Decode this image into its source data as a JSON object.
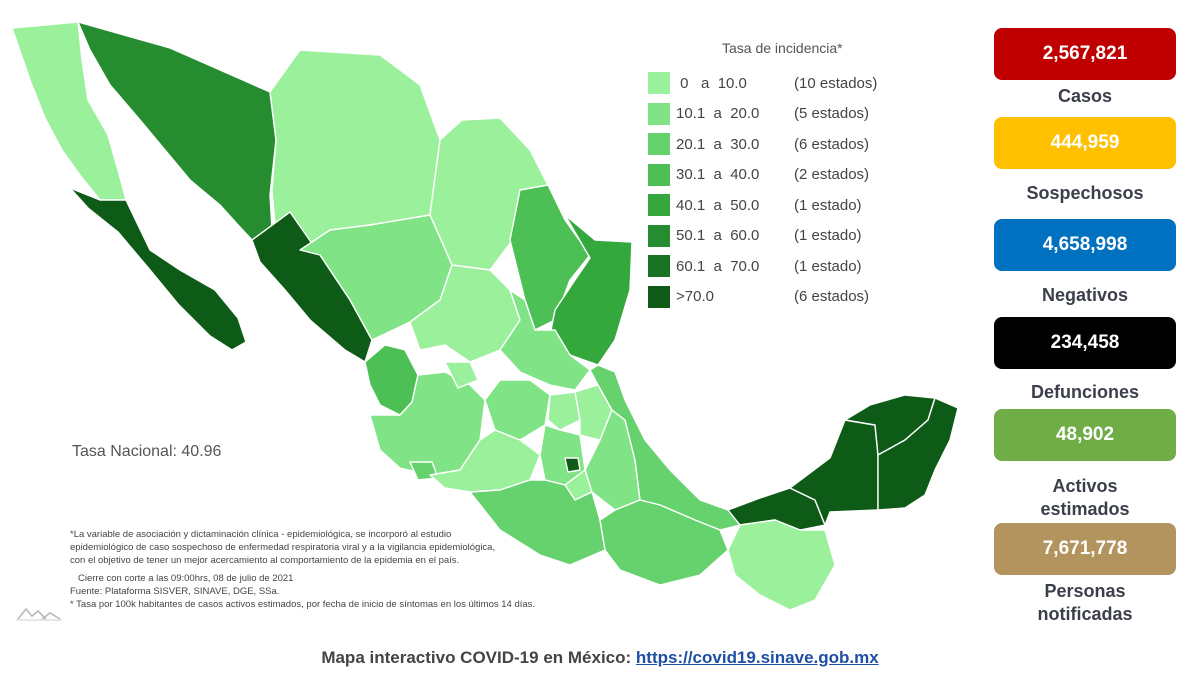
{
  "legend": {
    "title": "Tasa de incidencia*",
    "rows": [
      {
        "range": " 0   a  10.0",
        "states": "(10 estados)",
        "color": "#9af09b"
      },
      {
        "range": "10.1  a  20.0",
        "states": "(5 estados)",
        "color": "#80e486"
      },
      {
        "range": "20.1  a  30.0",
        "states": "(6 estados)",
        "color": "#66d26d"
      },
      {
        "range": "30.1  a  40.0",
        "states": "(2 estados)",
        "color": "#4cbf55"
      },
      {
        "range": "40.1  a  50.0",
        "states": "(1 estado)",
        "color": "#35a83d"
      },
      {
        "range": "50.1  a  60.0",
        "states": "(1 estado)",
        "color": "#268c30"
      },
      {
        "range": "60.1  a  70.0",
        "states": "(1 estado)",
        "color": "#197322"
      },
      {
        "range": ">70.0",
        "states": "(6 estados)",
        "color": "#0e5b17"
      }
    ]
  },
  "national_rate": "Tasa Nacional: 40.96",
  "footnotes": {
    "note1": "*La variable de asociación y dictaminación clínica - epidemiológica, se incorporó al estudio",
    "note2": "epidemiológico de caso sospechoso de enfermedad respiratoria viral y a la vigilancia epidemiológica,",
    "note3": "con el objetivo de tener un mejor acercamiento al comportamiento de la epidemia en el país.",
    "cutoff": "Cierre con corte a las 09:00hrs, 08 de julio de 2021",
    "source": "Fuente: Plataforma SISVER, SINAVE, DGE, SSa.",
    "rate_note": "* Tasa por 100k habitantes de casos activos estimados, por fecha de inicio de síntomas en los últimos 14 días."
  },
  "stats": [
    {
      "value": "2,567,821",
      "label": "Casos",
      "color": "#c00000"
    },
    {
      "value": "444,959",
      "label": "Sospechosos",
      "color": "#ffc000"
    },
    {
      "value": "4,658,998",
      "label": "Negativos",
      "color": "#0070c0"
    },
    {
      "value": "234,458",
      "label": "Defunciones",
      "color": "#000000"
    },
    {
      "value": "48,902",
      "label": "Activos estimados",
      "color": "#70ad47"
    },
    {
      "value": "7,671,778",
      "label": "Personas notificadas",
      "color": "#b3945e"
    }
  ],
  "footer": {
    "text": "Mapa interactivo COVID-19 en México: ",
    "link": "https://covid19.sinave.gob.mx"
  }
}
